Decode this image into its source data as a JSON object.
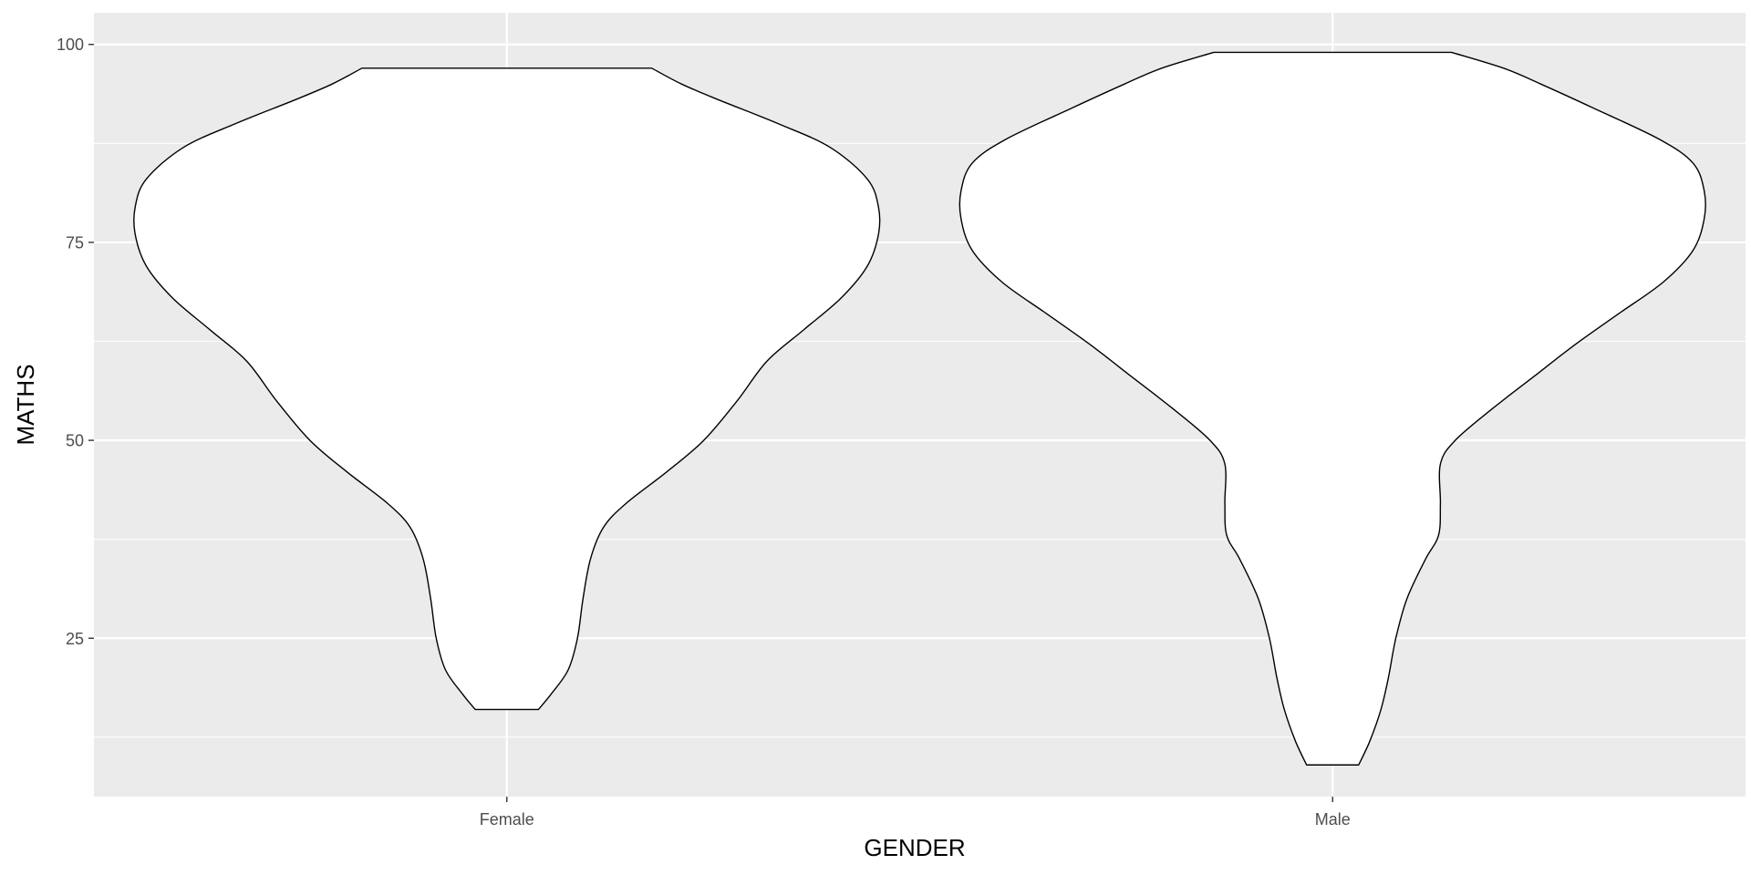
{
  "chart_data": {
    "type": "violin",
    "title": "",
    "xlabel": "GENDER",
    "ylabel": "MATHS",
    "categories": [
      "Female",
      "Male"
    ],
    "ylim": [
      5,
      104
    ],
    "y_ticks": [
      25,
      50,
      75,
      100
    ],
    "y_minor_ticks": [
      12.5,
      37.5,
      62.5,
      87.5
    ],
    "grid": true,
    "colors": {
      "panel": "#ebebeb",
      "grid": "#ffffff",
      "fill": "#ffffff",
      "outline": "#000000",
      "tick_text": "#4d4d4d"
    },
    "violins": [
      {
        "category": "Female",
        "y_min": 16,
        "y_max": 97,
        "profile": [
          {
            "y": 16,
            "w": 0.085
          },
          {
            "y": 18,
            "w": 0.12
          },
          {
            "y": 21,
            "w": 0.165
          },
          {
            "y": 25,
            "w": 0.19
          },
          {
            "y": 30,
            "w": 0.205
          },
          {
            "y": 35,
            "w": 0.225
          },
          {
            "y": 39,
            "w": 0.26
          },
          {
            "y": 42,
            "w": 0.32
          },
          {
            "y": 46,
            "w": 0.43
          },
          {
            "y": 50,
            "w": 0.53
          },
          {
            "y": 55,
            "w": 0.62
          },
          {
            "y": 60,
            "w": 0.7
          },
          {
            "y": 64,
            "w": 0.8
          },
          {
            "y": 68,
            "w": 0.9
          },
          {
            "y": 72,
            "w": 0.97
          },
          {
            "y": 76,
            "w": 1.0
          },
          {
            "y": 79.5,
            "w": 1.0
          },
          {
            "y": 83,
            "w": 0.97
          },
          {
            "y": 87,
            "w": 0.87
          },
          {
            "y": 90,
            "w": 0.73
          },
          {
            "y": 93,
            "w": 0.57
          },
          {
            "y": 95,
            "w": 0.47
          },
          {
            "y": 97,
            "w": 0.39
          }
        ]
      },
      {
        "category": "Male",
        "y_min": 9,
        "y_max": 99,
        "profile": [
          {
            "y": 9,
            "w": 0.07
          },
          {
            "y": 12,
            "w": 0.1
          },
          {
            "y": 16,
            "w": 0.13
          },
          {
            "y": 20,
            "w": 0.15
          },
          {
            "y": 25,
            "w": 0.17
          },
          {
            "y": 30,
            "w": 0.2
          },
          {
            "y": 35,
            "w": 0.25
          },
          {
            "y": 38,
            "w": 0.285
          },
          {
            "y": 42,
            "w": 0.29
          },
          {
            "y": 47,
            "w": 0.29
          },
          {
            "y": 50,
            "w": 0.33
          },
          {
            "y": 54,
            "w": 0.43
          },
          {
            "y": 58,
            "w": 0.54
          },
          {
            "y": 62,
            "w": 0.65
          },
          {
            "y": 66,
            "w": 0.77
          },
          {
            "y": 70,
            "w": 0.89
          },
          {
            "y": 74,
            "w": 0.97
          },
          {
            "y": 78,
            "w": 1.0
          },
          {
            "y": 81.5,
            "w": 1.0
          },
          {
            "y": 85,
            "w": 0.97
          },
          {
            "y": 88,
            "w": 0.88
          },
          {
            "y": 92,
            "w": 0.7
          },
          {
            "y": 95,
            "w": 0.56
          },
          {
            "y": 97,
            "w": 0.46
          },
          {
            "y": 99,
            "w": 0.32
          }
        ]
      }
    ]
  }
}
